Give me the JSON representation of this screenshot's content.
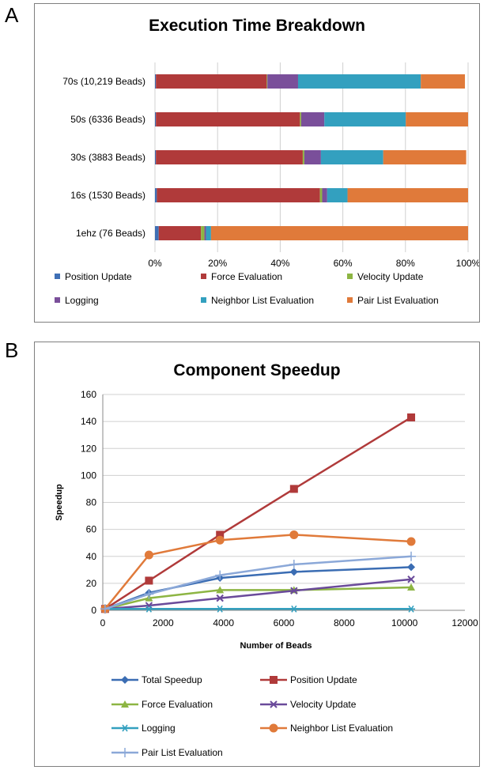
{
  "panels": {
    "a_letter": "A",
    "b_letter": "B"
  },
  "chart_data": [
    {
      "type": "bar",
      "orientation": "horizontal",
      "stacked": true,
      "percent": true,
      "title": "Execution Time Breakdown",
      "categories": [
        "70s (10,219  Beads)",
        "50s (6336 Beads)",
        "30s (3883 Beads)",
        "16s (1530 Beads)",
        "1ehz (76 Beads)"
      ],
      "xlim": [
        0,
        100
      ],
      "x_ticks": [
        "0%",
        "20%",
        "40%",
        "60%",
        "80%",
        "100%"
      ],
      "grid": "vertical",
      "legend_position": "bottom",
      "series": [
        {
          "name": "Position Update",
          "color": "#3f6fb5",
          "values": [
            0.3,
            0.3,
            0.3,
            0.6,
            1.2
          ]
        },
        {
          "name": "Force Evaluation",
          "color": "#b03a3a",
          "values": [
            35.4,
            46.0,
            46.9,
            52.1,
            13.5
          ]
        },
        {
          "name": "Velocity Update",
          "color": "#8db543",
          "values": [
            0.2,
            0.4,
            0.5,
            0.7,
            1.1
          ]
        },
        {
          "name": "Logging",
          "color": "#7a4f9a",
          "values": [
            9.8,
            7.4,
            5.3,
            1.6,
            0.5
          ]
        },
        {
          "name": "Neighbor List Evaluation",
          "color": "#33a0bf",
          "values": [
            39.2,
            26.0,
            19.9,
            6.5,
            1.6
          ]
        },
        {
          "name": "Pair List Evaluation",
          "color": "#e07a3a",
          "values": [
            14.1,
            19.9,
            26.5,
            38.5,
            82.1
          ]
        }
      ]
    },
    {
      "type": "line",
      "title": "Component Speedup",
      "xlabel": "Number of  Beads",
      "ylabel": "Speedup",
      "xlim": [
        0,
        12000
      ],
      "ylim": [
        0,
        160
      ],
      "x_ticks": [
        0,
        2000,
        4000,
        6000,
        8000,
        10000,
        12000
      ],
      "y_ticks": [
        0,
        20,
        40,
        60,
        80,
        100,
        120,
        140,
        160
      ],
      "grid": "horizontal",
      "legend_position": "bottom",
      "x": [
        76,
        1530,
        3883,
        6336,
        10219
      ],
      "series": [
        {
          "name": "Total Speedup",
          "color": "#3b6db3",
          "marker": "diamond",
          "values": [
            1,
            13,
            24,
            28.5,
            32
          ]
        },
        {
          "name": "Position Update",
          "color": "#b03a3a",
          "marker": "square",
          "values": [
            1,
            22,
            56,
            90,
            143
          ]
        },
        {
          "name": "Force Evaluation",
          "color": "#8db543",
          "marker": "triangle",
          "values": [
            1,
            9,
            15,
            15,
            17
          ]
        },
        {
          "name": "Velocity Update",
          "color": "#6a4a9a",
          "marker": "x",
          "values": [
            1,
            3.5,
            9,
            14.5,
            23
          ]
        },
        {
          "name": "Logging",
          "color": "#33a0bf",
          "marker": "star",
          "values": [
            1,
            1,
            1,
            1,
            1
          ]
        },
        {
          "name": "Neighbor List Evaluation",
          "color": "#e07a3a",
          "marker": "circle",
          "values": [
            1,
            41,
            52,
            56,
            51
          ]
        },
        {
          "name": "Pair List Evaluation",
          "color": "#8ba8d8",
          "marker": "plus",
          "values": [
            1,
            12,
            26,
            34,
            40
          ]
        }
      ]
    }
  ]
}
